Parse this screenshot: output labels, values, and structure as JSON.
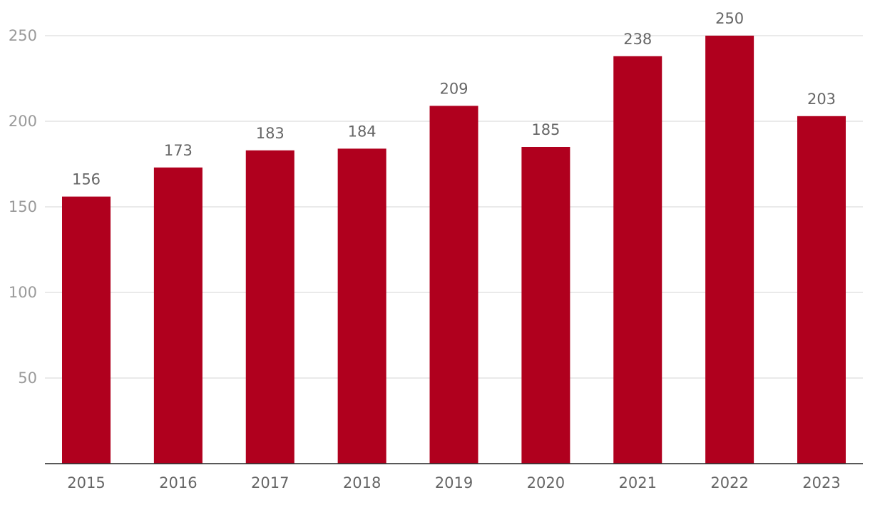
{
  "chart_data": {
    "type": "bar",
    "categories": [
      "2015",
      "2016",
      "2017",
      "2018",
      "2019",
      "2020",
      "2021",
      "2022",
      "2023"
    ],
    "values": [
      156,
      173,
      183,
      184,
      209,
      185,
      238,
      250,
      203
    ],
    "data_labels": [
      "156",
      "173",
      "183",
      "184",
      "209",
      "185",
      "238",
      "250",
      "203"
    ],
    "y_ticks": [
      50,
      100,
      150,
      200,
      250
    ],
    "ylim": [
      0,
      250
    ],
    "grid": true,
    "legend": "none",
    "colors": {
      "bar": "#b0001e",
      "grid": "#e3e3e3",
      "axis": "#222222"
    }
  }
}
